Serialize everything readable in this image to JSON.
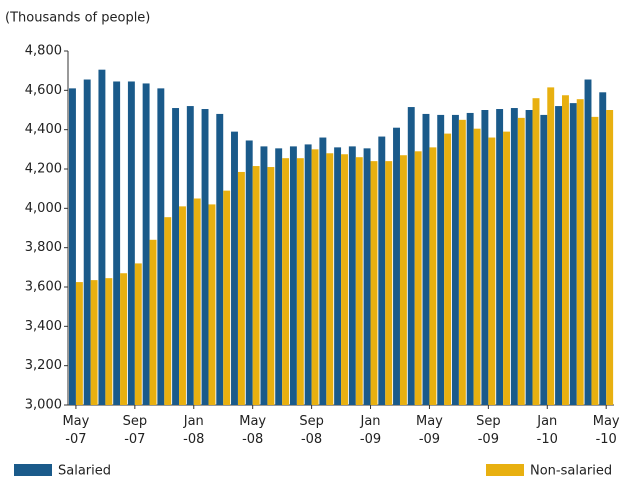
{
  "chart_data": {
    "type": "bar",
    "title": "(Thousands of people)",
    "categories": [
      "May\n-07",
      null,
      null,
      null,
      "Sep\n-07",
      null,
      null,
      null,
      "Jan\n-08",
      null,
      null,
      null,
      "May\n-08",
      null,
      null,
      null,
      "Sep\n-08",
      null,
      null,
      null,
      "Jan\n-09",
      null,
      null,
      null,
      "May\n-09",
      null,
      null,
      null,
      "Sep\n-09",
      null,
      null,
      null,
      "Jan\n-10",
      null,
      null,
      null,
      "May\n-10"
    ],
    "series": [
      {
        "name": "Salaried",
        "color": "#1a5a8a",
        "values": [
          4610,
          4655,
          4705,
          4645,
          4645,
          4635,
          4610,
          4510,
          4520,
          4505,
          4480,
          4390,
          4345,
          4315,
          4305,
          4315,
          4325,
          4360,
          4310,
          4315,
          4305,
          4365,
          4410,
          4515,
          4480,
          4475,
          4475,
          4485,
          4500,
          4505,
          4510,
          4500,
          4475,
          4520,
          4535,
          4655,
          4590
        ]
      },
      {
        "name": "Non-salaried",
        "color": "#e8b010",
        "values": [
          3625,
          3635,
          3645,
          3670,
          3720,
          3840,
          3955,
          4010,
          4050,
          4020,
          4090,
          4185,
          4215,
          4210,
          4255,
          4255,
          4300,
          4280,
          4275,
          4260,
          4240,
          4240,
          4270,
          4290,
          4310,
          4380,
          4450,
          4405,
          4360,
          4390,
          4460,
          4560,
          4615,
          4575,
          4555,
          4465,
          4500
        ]
      }
    ],
    "ylim": [
      3000,
      4800
    ],
    "yticks": [
      {
        "value": 3000,
        "label": "3,000"
      },
      {
        "value": 3200,
        "label": "3,200"
      },
      {
        "value": 3400,
        "label": "3,400"
      },
      {
        "value": 3600,
        "label": "3,600"
      },
      {
        "value": 3800,
        "label": "3,800"
      },
      {
        "value": 4000,
        "label": "4,000"
      },
      {
        "value": 4200,
        "label": "4,200"
      },
      {
        "value": 4400,
        "label": "4,400"
      },
      {
        "value": 4600,
        "label": "4,600"
      },
      {
        "value": 4800,
        "label": "4,800"
      }
    ],
    "grid": false
  }
}
